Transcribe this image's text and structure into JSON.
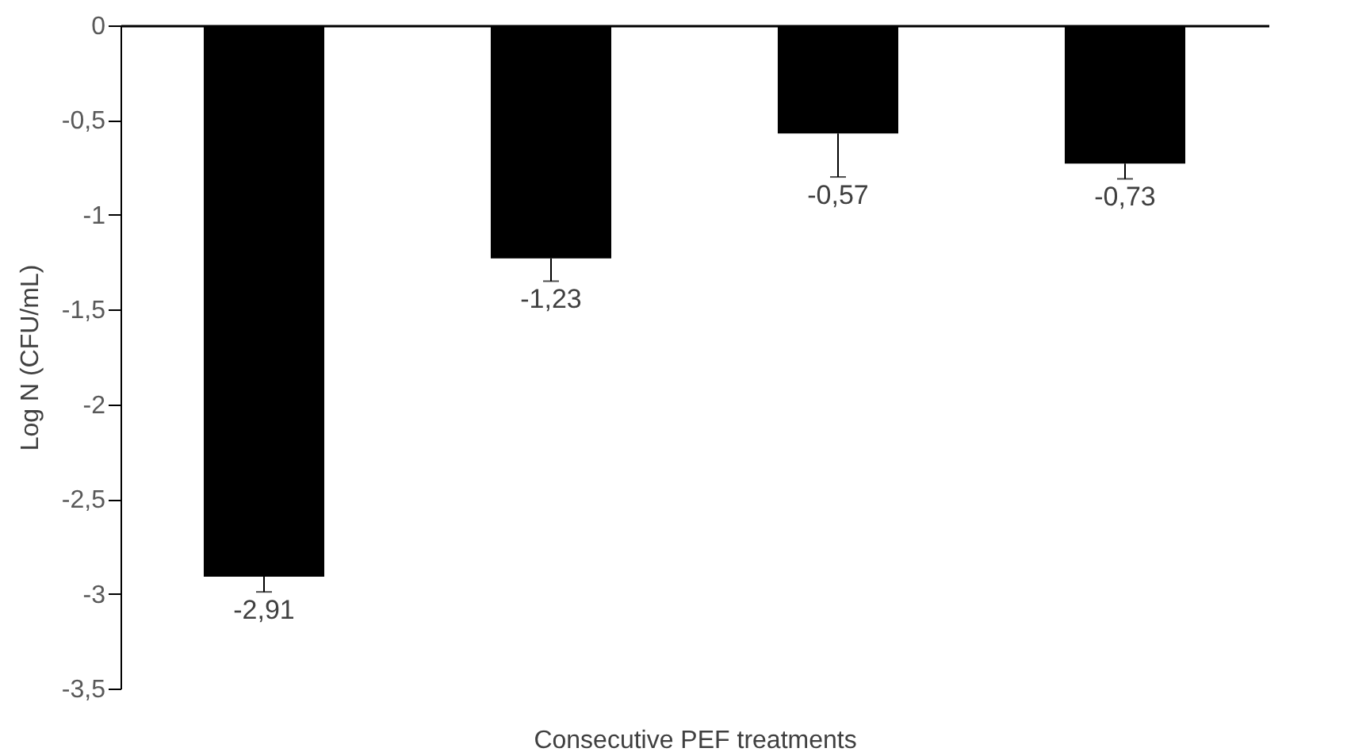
{
  "chart_data": {
    "type": "bar",
    "xlabel": "Consecutive PEF treatments",
    "ylabel": "Log N (CFU/mL)",
    "categories": [
      null,
      null,
      null,
      null
    ],
    "values": [
      -2.91,
      -1.23,
      -0.57,
      -0.73
    ],
    "color": "#000000",
    "errors": [
      [
        -2.99,
        -2.91
      ],
      [
        -1.35,
        -1.23
      ],
      [
        -0.8,
        -0.57
      ],
      [
        -0.81,
        -0.73
      ]
    ],
    "value_labels": [
      "-2,91",
      "-1,23",
      "-0,57",
      "-0,73"
    ],
    "ylim": [
      -3.5,
      0
    ],
    "yticks": [
      {
        "value": -3.5,
        "label": "-3,5"
      },
      -3,
      {
        "value": -2.5,
        "label": "-2,5"
      },
      -2,
      {
        "value": -1.5,
        "label": "-1,5"
      },
      -1,
      {
        "value": -0.5,
        "label": "-0,5"
      },
      0
    ],
    "grid": false
  }
}
